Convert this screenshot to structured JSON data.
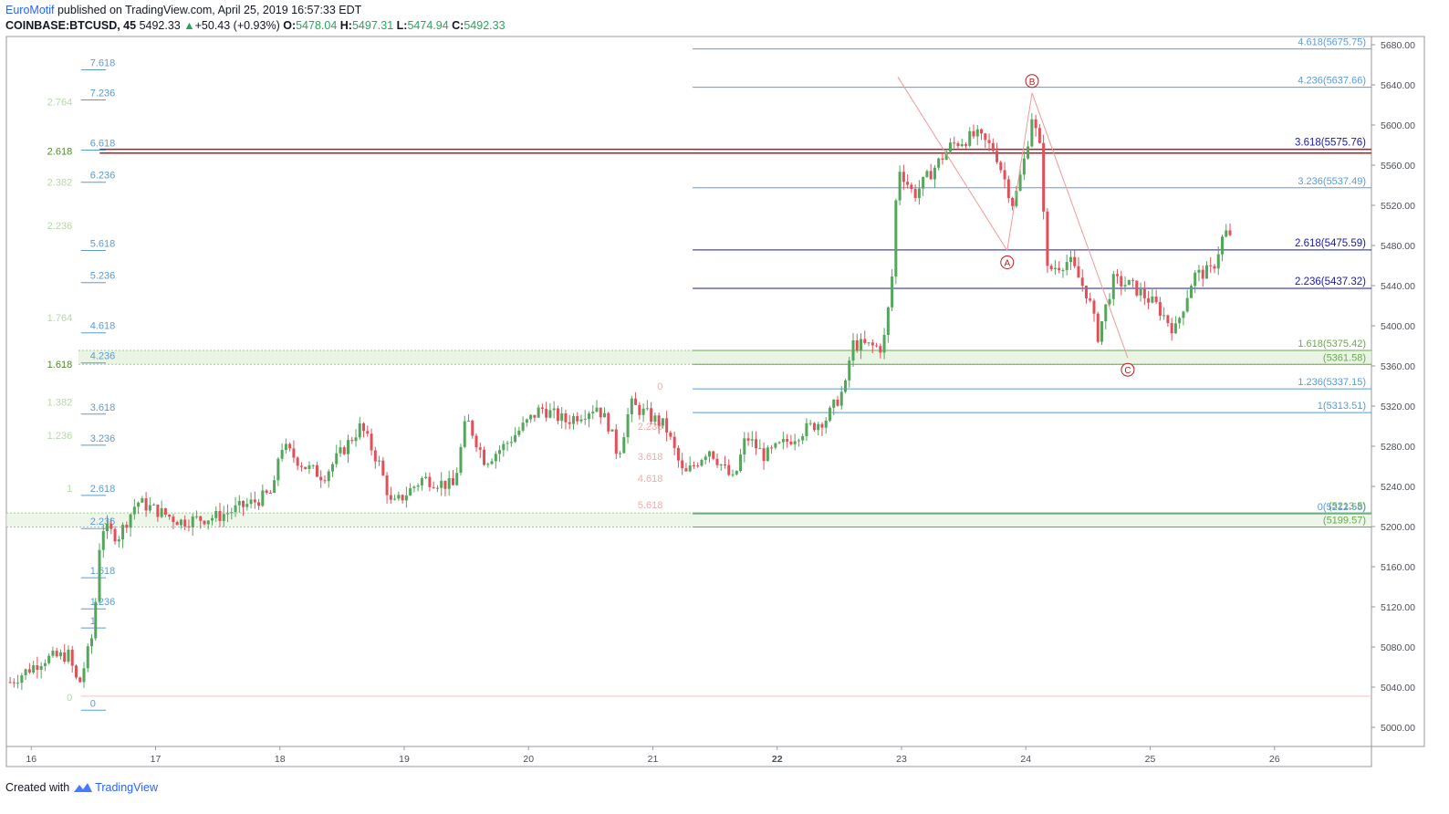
{
  "header": {
    "publisher": "EuroMotif",
    "published_text": "published on TradingView.com, April 25, 2019 16:57:33 EDT",
    "symbol": "COINBASE:BTCUSD, 45",
    "last": "5492.33",
    "change": "+50.43 (+0.93%)",
    "o_label": "O:",
    "o_value": "5478.04",
    "h_label": "H:",
    "h_value": "5497.31",
    "l_label": "L:",
    "l_value": "5474.94",
    "c_label": "C:",
    "c_value": "5492.33"
  },
  "footer": {
    "created_with": "Created with",
    "brand": "TradingView"
  },
  "colors": {
    "up": "#53a65a",
    "down": "#e0505a",
    "fib_blue": "#5b9bd5",
    "fib_green": "#6aa84f",
    "fib_pink": "#f4a9a9",
    "red_line": "#b71c1c",
    "wave": "#ef9a9a"
  },
  "chart_data": {
    "type": "candlestick",
    "title": "COINBASE:BTCUSD, 45",
    "x_ticks": [
      "16",
      "17",
      "18",
      "19",
      "20",
      "21",
      "22",
      "23",
      "24",
      "25",
      "26"
    ],
    "y_ticks": [
      "5680.00",
      "5640.00",
      "5600.00",
      "5560.00",
      "5520.00",
      "5480.00",
      "5440.00",
      "5400.00",
      "5360.00",
      "5320.00",
      "5280.00",
      "5240.00",
      "5200.00",
      "5160.00",
      "5120.00",
      "5080.00",
      "5040.00",
      "5000.00"
    ],
    "ylim": [
      4972,
      5694
    ],
    "xlim": [
      15.8,
      26.78
    ],
    "ohlc_keypoints": [
      {
        "d": 15.83,
        "p": 5045
      },
      {
        "d": 16.1,
        "p": 5068
      },
      {
        "d": 16.3,
        "p": 5072
      },
      {
        "d": 16.38,
        "p": 5040
      },
      {
        "d": 16.5,
        "p": 5095
      },
      {
        "d": 16.56,
        "p": 5200
      },
      {
        "d": 16.7,
        "p": 5190
      },
      {
        "d": 16.85,
        "p": 5225
      },
      {
        "d": 17.2,
        "p": 5205
      },
      {
        "d": 17.5,
        "p": 5210
      },
      {
        "d": 17.8,
        "p": 5225
      },
      {
        "d": 17.95,
        "p": 5235
      },
      {
        "d": 18.0,
        "p": 5282
      },
      {
        "d": 18.2,
        "p": 5260
      },
      {
        "d": 18.35,
        "p": 5250
      },
      {
        "d": 18.65,
        "p": 5300
      },
      {
        "d": 18.8,
        "p": 5262
      },
      {
        "d": 18.9,
        "p": 5220
      },
      {
        "d": 19.15,
        "p": 5248
      },
      {
        "d": 19.4,
        "p": 5240
      },
      {
        "d": 19.5,
        "p": 5308
      },
      {
        "d": 19.65,
        "p": 5265
      },
      {
        "d": 19.8,
        "p": 5280
      },
      {
        "d": 20.1,
        "p": 5318
      },
      {
        "d": 20.3,
        "p": 5305
      },
      {
        "d": 20.55,
        "p": 5320
      },
      {
        "d": 20.65,
        "p": 5300
      },
      {
        "d": 20.72,
        "p": 5270
      },
      {
        "d": 20.82,
        "p": 5322
      },
      {
        "d": 21.1,
        "p": 5300
      },
      {
        "d": 21.25,
        "p": 5250
      },
      {
        "d": 21.45,
        "p": 5278
      },
      {
        "d": 21.65,
        "p": 5245
      },
      {
        "d": 21.75,
        "p": 5290
      },
      {
        "d": 21.9,
        "p": 5270
      },
      {
        "d": 22.2,
        "p": 5295
      },
      {
        "d": 22.4,
        "p": 5308
      },
      {
        "d": 22.55,
        "p": 5340
      },
      {
        "d": 22.6,
        "p": 5382
      },
      {
        "d": 22.85,
        "p": 5378
      },
      {
        "d": 22.92,
        "p": 5440
      },
      {
        "d": 22.97,
        "p": 5560
      },
      {
        "d": 23.1,
        "p": 5530
      },
      {
        "d": 23.4,
        "p": 5580
      },
      {
        "d": 23.6,
        "p": 5590
      },
      {
        "d": 23.75,
        "p": 5575
      },
      {
        "d": 23.9,
        "p": 5520
      },
      {
        "d": 24.0,
        "p": 5572
      },
      {
        "d": 24.05,
        "p": 5610
      },
      {
        "d": 24.12,
        "p": 5572
      },
      {
        "d": 24.17,
        "p": 5455
      },
      {
        "d": 24.35,
        "p": 5465
      },
      {
        "d": 24.5,
        "p": 5430
      },
      {
        "d": 24.58,
        "p": 5390
      },
      {
        "d": 24.7,
        "p": 5445
      },
      {
        "d": 24.85,
        "p": 5440
      },
      {
        "d": 25.05,
        "p": 5420
      },
      {
        "d": 25.2,
        "p": 5395
      },
      {
        "d": 25.35,
        "p": 5450
      },
      {
        "d": 25.5,
        "p": 5455
      },
      {
        "d": 25.6,
        "p": 5495
      },
      {
        "d": 25.65,
        "p": 5485
      }
    ],
    "wave_points": [
      {
        "d": 22.97,
        "p": 5648
      },
      {
        "d": 23.85,
        "p": 5475,
        "label": "A"
      },
      {
        "d": 24.05,
        "p": 5632,
        "label": "B"
      },
      {
        "d": 24.82,
        "p": 5368,
        "label": "C"
      }
    ],
    "horizontal_lines": [
      {
        "p": 5575.76,
        "color": "red"
      },
      {
        "p": 5572.0,
        "color": "red"
      },
      {
        "p": 5031,
        "color": "pink"
      }
    ],
    "zones": [
      {
        "from": 5361.58,
        "to": 5375.42
      },
      {
        "from": 5199.57,
        "to": 5213.5
      }
    ],
    "fib_right": [
      {
        "label": "4.618(5675.75)",
        "p": 5675.75,
        "color": "blue"
      },
      {
        "label": "4.236(5637.66)",
        "p": 5637.66,
        "color": "blue"
      },
      {
        "label": "3.618(5575.76)",
        "p": 5575.76,
        "color": "navy"
      },
      {
        "label": "3.236(5537.49)",
        "p": 5537.49,
        "color": "blue"
      },
      {
        "label": "2.618(5475.59)",
        "p": 5475.59,
        "color": "navy"
      },
      {
        "label": "2.236(5437.32)",
        "p": 5437.32,
        "color": "navy"
      },
      {
        "label": "1.618(5375.42)",
        "p": 5375.42,
        "color": "green"
      },
      {
        "label": "(5361.58)",
        "p": 5361.58,
        "color": "green"
      },
      {
        "label": "1.236(5337.15)",
        "p": 5337.15,
        "color": "blue"
      },
      {
        "label": "1(5313.51)",
        "p": 5313.51,
        "color": "blue"
      },
      {
        "label": "0(5212.58)",
        "p": 5212.58,
        "color": "blue"
      },
      {
        "label": "(5213.5)",
        "p": 5213.5,
        "color": "green"
      },
      {
        "label": "(5199.57)",
        "p": 5199.57,
        "color": "green"
      }
    ],
    "fib_left_blue": [
      {
        "label": "7.618",
        "p": 5655
      },
      {
        "label": "7.236",
        "p": 5625
      },
      {
        "label": "6.618",
        "p": 5575
      },
      {
        "label": "6.236",
        "p": 5543
      },
      {
        "label": "5.618",
        "p": 5475
      },
      {
        "label": "5.236",
        "p": 5443
      },
      {
        "label": "4.618",
        "p": 5393
      },
      {
        "label": "4.236",
        "p": 5363
      },
      {
        "label": "3.618",
        "p": 5312
      },
      {
        "label": "3.236",
        "p": 5281
      },
      {
        "label": "2.618",
        "p": 5231
      },
      {
        "label": "2.236",
        "p": 5198
      },
      {
        "label": "1.618",
        "p": 5149
      },
      {
        "label": "1.236",
        "p": 5118
      },
      {
        "label": "1",
        "p": 5099
      },
      {
        "label": "0",
        "p": 5017
      }
    ],
    "fib_left_green": [
      {
        "label": "2.764",
        "p": 5623,
        "faded": true
      },
      {
        "label": "2.618",
        "p": 5574,
        "faded": false
      },
      {
        "label": "2.382",
        "p": 5543,
        "faded": true
      },
      {
        "label": "2.236",
        "p": 5500,
        "faded": true
      },
      {
        "label": "1.764",
        "p": 5408,
        "faded": true
      },
      {
        "label": "1.618",
        "p": 5362,
        "faded": false
      },
      {
        "label": "1.382",
        "p": 5324,
        "faded": true
      },
      {
        "label": "1.236",
        "p": 5291,
        "faded": true
      },
      {
        "label": "1",
        "p": 5238,
        "faded": true
      },
      {
        "label": "0",
        "p": 5030,
        "faded": true
      }
    ],
    "fib_mid_pink": [
      {
        "label": "0",
        "p": 5340
      },
      {
        "label": "2.236",
        "p": 5300
      },
      {
        "label": "3.618",
        "p": 5270
      },
      {
        "label": "4.618",
        "p": 5248
      },
      {
        "label": "5.618",
        "p": 5222
      }
    ]
  }
}
